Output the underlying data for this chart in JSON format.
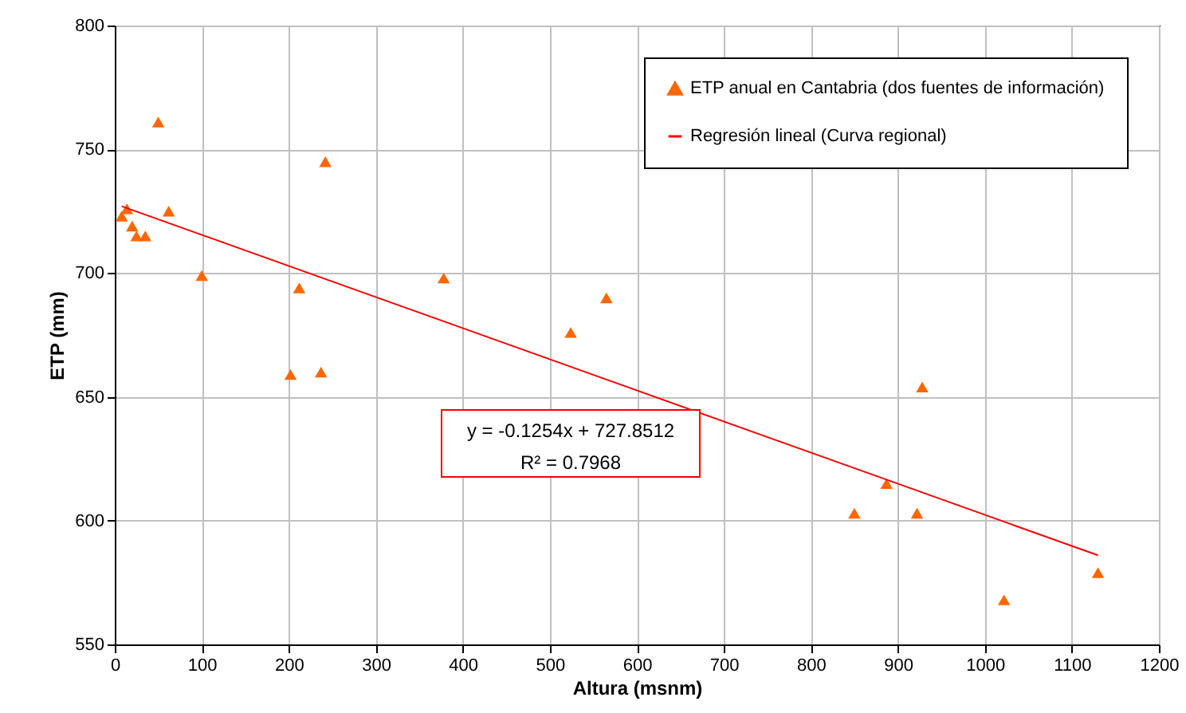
{
  "chart_data": {
    "type": "scatter",
    "xlabel": "Altura (msnm)",
    "ylabel": "ETP (mm)",
    "xlim": [
      0,
      1200
    ],
    "xticks": [
      0,
      100,
      200,
      300,
      400,
      500,
      600,
      700,
      800,
      900,
      1000,
      1100,
      1200
    ],
    "ylim": [
      550,
      800
    ],
    "yticks": [
      550,
      600,
      650,
      700,
      750,
      800
    ],
    "grid": true,
    "legend": "top right",
    "annotations": [
      "y = -0.1254x + 727.8512",
      "R² = 0.7968"
    ],
    "series": [
      {
        "name": "ETP anual en Cantabria (dos fuentes de información)",
        "color": "#ff6600",
        "marker": "triangle",
        "x": [
          8,
          14,
          20,
          25,
          35,
          50,
          62,
          100,
          202,
          212,
          237,
          242,
          378,
          524,
          565,
          850,
          887,
          922,
          928,
          1022,
          1130
        ],
        "values": [
          723,
          726,
          719,
          715,
          715,
          761,
          725,
          699,
          659,
          694,
          660,
          745,
          698,
          676,
          690,
          603,
          615,
          603,
          654,
          568,
          579
        ]
      },
      {
        "name": "Regresión lineal (Curva regional)",
        "type": "line",
        "color": "#ff0000",
        "line_style": "solid",
        "marker": "none",
        "x": [
          8,
          1130
        ],
        "values": [
          727,
          586
        ]
      }
    ]
  }
}
